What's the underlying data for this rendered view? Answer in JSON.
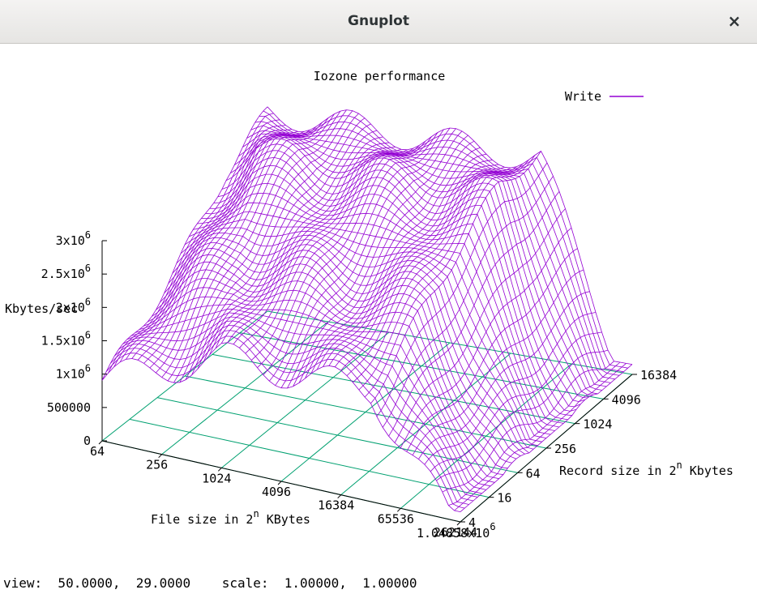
{
  "window": {
    "title": "Gnuplot",
    "close_icon": "×"
  },
  "plot": {
    "title": "Iozone performance",
    "legend": {
      "label": "Write",
      "color": "#9400d3"
    },
    "grid_color": "#00a070",
    "z_axis": {
      "label": "Kbytes/sec",
      "ticks": [
        {
          "base": "3x10",
          "exp": "6"
        },
        {
          "base": "2.5x10",
          "exp": "6"
        },
        {
          "base": "2x10",
          "exp": "6"
        },
        {
          "base": "1.5x10",
          "exp": "6"
        },
        {
          "base": "1x10",
          "exp": "6"
        },
        {
          "base": "500000",
          "exp": ""
        },
        {
          "base": "0",
          "exp": ""
        }
      ]
    },
    "x_axis": {
      "label": "File size in 2",
      "label_exp": "n",
      "label_suffix": " KBytes",
      "ticks": [
        "64",
        "256",
        "1024",
        "4096",
        "16384",
        "65536",
        "262144"
      ],
      "last_tick": {
        "base": "1.04858x10",
        "exp": "6"
      }
    },
    "y_axis": {
      "label": "Record size in 2",
      "label_exp": "n",
      "label_suffix": " Kbytes",
      "ticks": [
        "4",
        "16",
        "64",
        "256",
        "1024",
        "4096",
        "16384"
      ]
    }
  },
  "status": "view:  50.0000,  29.0000    scale:  1.00000,  1.00000"
}
